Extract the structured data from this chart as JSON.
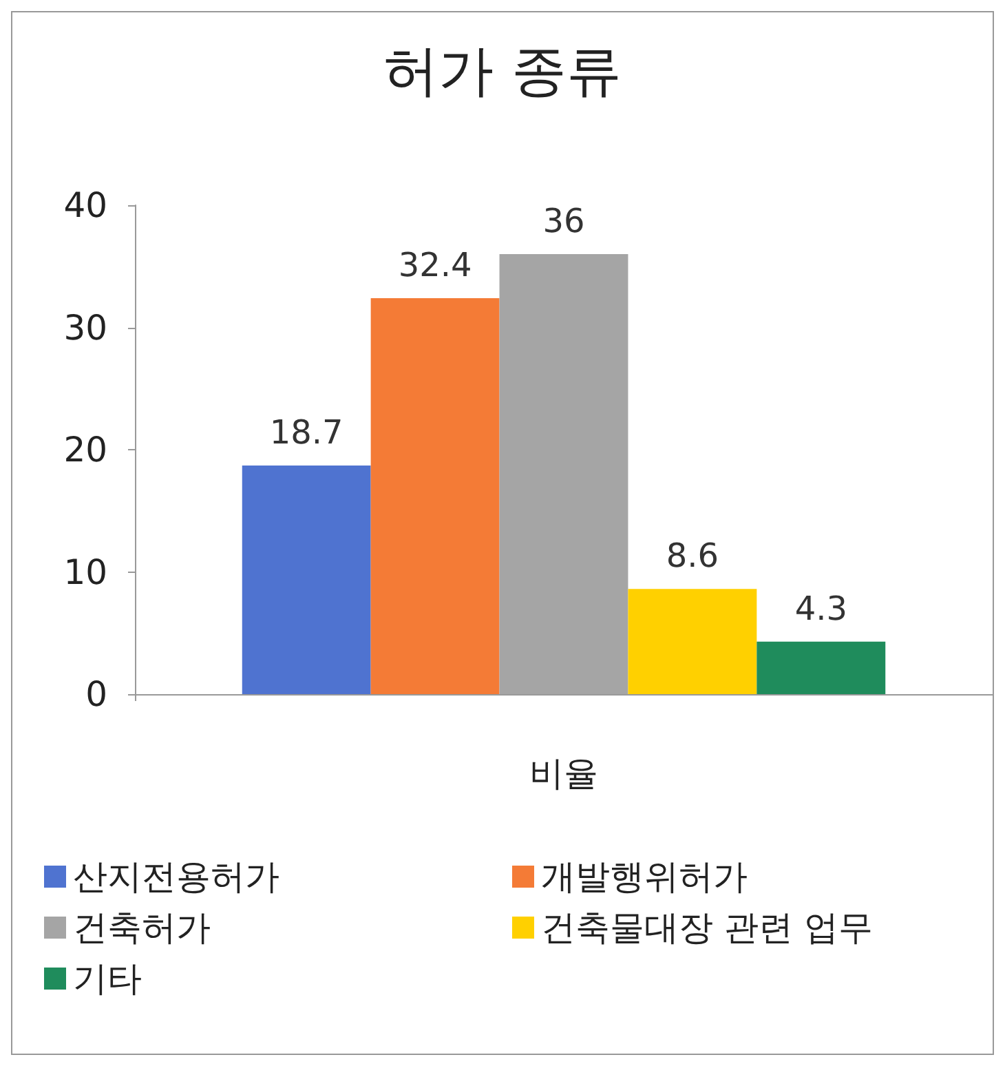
{
  "chart_data": {
    "type": "bar",
    "title": "허가 종류",
    "categories": [
      "비율"
    ],
    "series": [
      {
        "name": "산지전용허가",
        "color": "#4f73d0",
        "values": [
          18.7
        ]
      },
      {
        "name": "개발행위허가",
        "color": "#f47b36",
        "values": [
          32.4
        ]
      },
      {
        "name": "건축허가",
        "color": "#a5a5a5",
        "values": [
          36
        ]
      },
      {
        "name": "건축물대장 관련 업무",
        "color": "#ffd000",
        "values": [
          8.6
        ]
      },
      {
        "name": "기타",
        "color": "#1f8c5c",
        "values": [
          4.3
        ]
      }
    ],
    "ylim": [
      0,
      40
    ],
    "yticks": [
      0,
      10,
      20,
      30,
      40
    ],
    "data_labels": true,
    "grid": false,
    "legend": "bottom"
  }
}
